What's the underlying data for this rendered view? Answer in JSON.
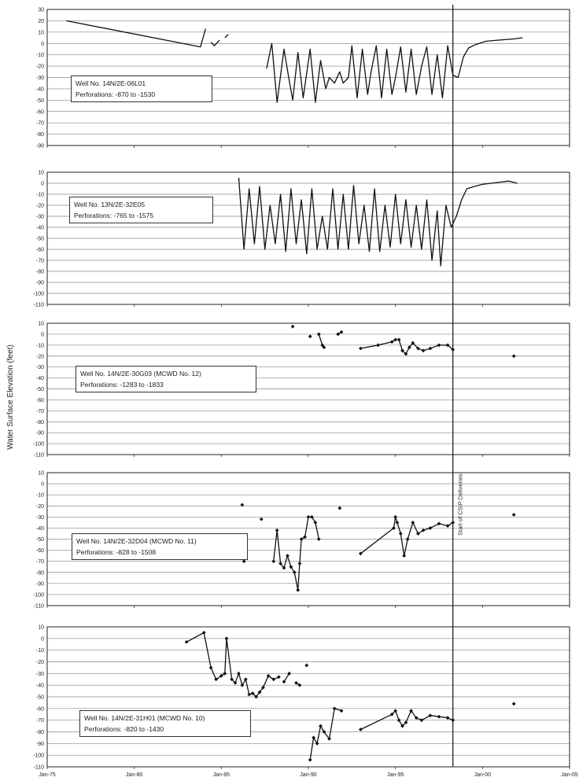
{
  "chart_data": {
    "type": "line",
    "ylabel": "Water Surface Elevation (feet)",
    "x_tick_labels": [
      "Jan-75",
      "Jan-80",
      "Jan-85",
      "Jan-90",
      "Jan-95",
      "Jan-00",
      "Jan-05"
    ],
    "x_ticks": [
      1975,
      1980,
      1985,
      1990,
      1995,
      2000,
      2005
    ],
    "xlim": [
      1975,
      2005
    ],
    "vertical_marker": {
      "x": 1998.3,
      "label": "Start of CSIP Deliveries"
    },
    "grid": "horizontal",
    "panels": [
      {
        "well": "Well No. 14N/2E-06L01",
        "perforations": "Perforations: -870 to  -1530",
        "ylim": [
          -90,
          30
        ],
        "yticks": [
          30,
          20,
          10,
          0,
          -10,
          -20,
          -30,
          -40,
          -50,
          -60,
          -70,
          -80,
          -90
        ],
        "style": "line",
        "segments": [
          {
            "x": [
              1976.1,
              1983.8,
              1984.1
            ],
            "y": [
              20,
              -3,
              13
            ]
          },
          {
            "x": [
              1984.4,
              1984.6,
              1984.9
            ],
            "y": [
              1,
              -2,
              3
            ]
          },
          {
            "x": [
              1985.2,
              1985.4
            ],
            "y": [
              5,
              8
            ]
          },
          {
            "x": [
              1987.6,
              1987.9,
              1988.2,
              1988.6,
              1988.9,
              1989.1,
              1989.4,
              1989.7,
              1990.1,
              1990.4,
              1990.7,
              1991.0,
              1991.2,
              1991.5,
              1991.8,
              1992.0,
              1992.3,
              1992.5,
              1992.8,
              1993.1,
              1993.4,
              1993.6,
              1993.9,
              1994.2,
              1994.5,
              1994.8,
              1995.0,
              1995.3,
              1995.6,
              1995.9,
              1996.2,
              1996.5,
              1996.8,
              1997.1,
              1997.4,
              1997.7,
              1998.0,
              1998.3,
              1998.6,
              1998.9,
              1999.2,
              1999.6,
              2000.2,
              2001.0,
              2001.8,
              2002.3
            ],
            "y": [
              -22,
              0,
              -52,
              -5,
              -33,
              -50,
              -8,
              -48,
              -5,
              -52,
              -15,
              -40,
              -30,
              -35,
              -25,
              -35,
              -30,
              -2,
              -48,
              -5,
              -45,
              -25,
              -2,
              -48,
              -5,
              -45,
              -30,
              -3,
              -43,
              -5,
              -45,
              -20,
              -3,
              -45,
              -10,
              -48,
              -2,
              -28,
              -30,
              -12,
              -4,
              -1,
              2,
              3,
              4,
              5
            ]
          }
        ]
      },
      {
        "well": "Well No. 13N/2E-32E05",
        "perforations": "Perforations: -765 to  -1575",
        "ylim": [
          -110,
          10
        ],
        "yticks": [
          10,
          0,
          -10,
          -20,
          -30,
          -40,
          -50,
          -60,
          -70,
          -80,
          -90,
          -100,
          -110
        ],
        "style": "line",
        "segments": [
          {
            "x": [
              1986.0,
              1986.3,
              1986.6,
              1986.9,
              1987.2,
              1987.5,
              1987.8,
              1988.1,
              1988.4,
              1988.7,
              1989.0,
              1989.3,
              1989.6,
              1989.9,
              1990.2,
              1990.5,
              1990.8,
              1991.1,
              1991.4,
              1991.7,
              1992.0,
              1992.3,
              1992.6,
              1992.9,
              1993.2,
              1993.5,
              1993.8,
              1994.1,
              1994.4,
              1994.7,
              1995.0,
              1995.3,
              1995.6,
              1995.9,
              1996.2,
              1996.5,
              1996.8,
              1997.1,
              1997.4,
              1997.6,
              1997.9,
              1998.2,
              1998.5,
              1998.8,
              1999.1,
              1999.5,
              2000.0,
              2000.5,
              2001.0,
              2001.5,
              2002.0
            ],
            "y": [
              5,
              -60,
              -5,
              -55,
              -3,
              -60,
              -20,
              -55,
              -10,
              -62,
              -5,
              -55,
              -15,
              -64,
              -5,
              -60,
              -30,
              -60,
              -5,
              -60,
              -10,
              -60,
              -2,
              -55,
              -20,
              -62,
              -5,
              -62,
              -20,
              -58,
              -10,
              -55,
              -15,
              -58,
              -20,
              -60,
              -15,
              -70,
              -25,
              -75,
              -20,
              -40,
              -30,
              -15,
              -5,
              -3,
              -1,
              0,
              1,
              2,
              0
            ]
          }
        ]
      },
      {
        "well": "Well No. 14N/2E-30G03 (MCWD No. 12)",
        "perforations": "Perforations: -1283 to  -1833",
        "ylim": [
          -110,
          10
        ],
        "yticks": [
          10,
          0,
          -10,
          -20,
          -30,
          -40,
          -50,
          -60,
          -70,
          -80,
          -90,
          -100,
          -110
        ],
        "style": "points",
        "segments": [
          {
            "x": [
              1989.1
            ],
            "y": [
              7
            ]
          },
          {
            "x": [
              1990.1
            ],
            "y": [
              -2
            ]
          },
          {
            "x": [
              1990.6,
              1990.8,
              1990.9
            ],
            "y": [
              0,
              -10,
              -12
            ]
          },
          {
            "x": [
              1991.7,
              1991.9
            ],
            "y": [
              0,
              2
            ]
          },
          {
            "x": [
              1993.0,
              1994.0,
              1994.8,
              1995.0,
              1995.2,
              1995.4,
              1995.6,
              1995.8,
              1996.0,
              1996.3,
              1996.6,
              1997.0,
              1997.5,
              1998.0,
              1998.3
            ],
            "y": [
              -13,
              -10,
              -7,
              -5,
              -5,
              -15,
              -18,
              -12,
              -8,
              -13,
              -15,
              -13,
              -10,
              -10,
              -14
            ]
          },
          {
            "x": [
              2001.8
            ],
            "y": [
              -20
            ]
          }
        ]
      },
      {
        "well": "Well No. 14N/2E-32D04 (MCWD No. 11)",
        "perforations": "Perforations: -828 to  -1508",
        "ylim": [
          -110,
          10
        ],
        "yticks": [
          10,
          0,
          -10,
          -20,
          -30,
          -40,
          -50,
          -60,
          -70,
          -80,
          -90,
          -100,
          -110
        ],
        "style": "points",
        "segments": [
          {
            "x": [
              1986.2
            ],
            "y": [
              -19
            ]
          },
          {
            "x": [
              1986.3
            ],
            "y": [
              -70
            ]
          },
          {
            "x": [
              1987.3
            ],
            "y": [
              -32
            ]
          },
          {
            "x": [
              1988.0,
              1988.2,
              1988.4,
              1988.6,
              1988.8,
              1989.0,
              1989.2,
              1989.4,
              1989.5,
              1989.6,
              1989.8,
              1990.0,
              1990.2,
              1990.4,
              1990.6
            ],
            "y": [
              -70,
              -42,
              -72,
              -76,
              -65,
              -75,
              -80,
              -96,
              -72,
              -50,
              -48,
              -30,
              -30,
              -35,
              -50
            ]
          },
          {
            "x": [
              1991.8
            ],
            "y": [
              -22
            ]
          },
          {
            "x": [
              1993.0,
              1994.9,
              1995.0,
              1995.1,
              1995.3,
              1995.5,
              1995.7,
              1996.0,
              1996.3,
              1996.6,
              1997.0,
              1997.5,
              1998.0,
              1998.3
            ],
            "y": [
              -63,
              -40,
              -30,
              -35,
              -45,
              -65,
              -50,
              -35,
              -45,
              -42,
              -40,
              -36,
              -38,
              -35
            ]
          },
          {
            "x": [
              2001.8
            ],
            "y": [
              -28
            ]
          }
        ]
      },
      {
        "well": "Well No. 14N/2E-31H01 (MCWD No. 10)",
        "perforations": "Perforations: -820 to  -1430",
        "ylim": [
          -110,
          10
        ],
        "yticks": [
          10,
          0,
          -10,
          -20,
          -30,
          -40,
          -50,
          -60,
          -70,
          -80,
          -90,
          -100,
          -110
        ],
        "style": "points",
        "segments": [
          {
            "x": [
              1983.0,
              1984.0,
              1984.4,
              1984.7,
              1985.0,
              1985.2,
              1985.3,
              1985.6,
              1985.8,
              1986.0,
              1986.2,
              1986.4,
              1986.6,
              1986.8,
              1987.0,
              1987.2,
              1987.4,
              1987.7,
              1988.0,
              1988.3
            ],
            "y": [
              -3,
              5,
              -25,
              -35,
              -32,
              -30,
              0,
              -35,
              -38,
              -30,
              -40,
              -35,
              -48,
              -47,
              -50,
              -46,
              -42,
              -32,
              -35,
              -33
            ]
          },
          {
            "x": [
              1988.6,
              1988.9
            ],
            "y": [
              -37,
              -30
            ]
          },
          {
            "x": [
              1989.3,
              1989.5
            ],
            "y": [
              -38,
              -40
            ]
          },
          {
            "x": [
              1989.9
            ],
            "y": [
              -23
            ]
          },
          {
            "x": [
              1990.1,
              1990.3,
              1990.5,
              1990.7,
              1990.9,
              1991.2,
              1991.5,
              1991.9
            ],
            "y": [
              -104,
              -85,
              -90,
              -75,
              -80,
              -86,
              -60,
              -62
            ]
          },
          {
            "x": [
              1993.0,
              1994.8,
              1995.0,
              1995.2,
              1995.4,
              1995.6,
              1995.9,
              1996.2,
              1996.5,
              1997.0,
              1997.5,
              1998.0,
              1998.3
            ],
            "y": [
              -78,
              -65,
              -62,
              -70,
              -75,
              -72,
              -62,
              -68,
              -70,
              -66,
              -67,
              -68,
              -70
            ]
          },
          {
            "x": [
              2001.8
            ],
            "y": [
              -56
            ]
          }
        ]
      }
    ]
  }
}
